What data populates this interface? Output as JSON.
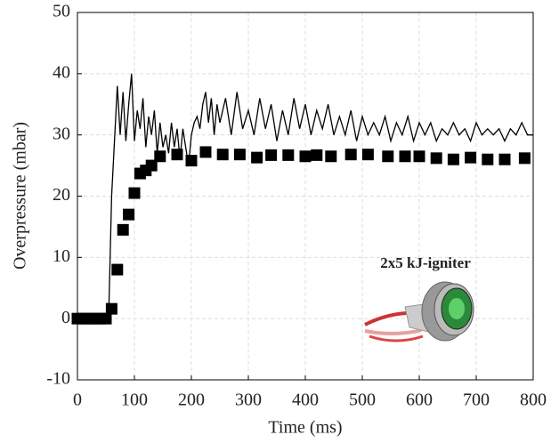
{
  "chart_data": {
    "type": "line",
    "xlabel": "Time (ms)",
    "ylabel": "Overpressure (mbar)",
    "annotation": "2x5 kJ-igniter",
    "xlim": [
      0,
      800
    ],
    "ylim": [
      -10,
      50
    ],
    "xticks": [
      0,
      100,
      200,
      300,
      400,
      500,
      600,
      700,
      800
    ],
    "yticks": [
      -10,
      0,
      10,
      20,
      30,
      40,
      50
    ],
    "grid": true,
    "series": [
      {
        "type": "line",
        "color": "#000000",
        "x": [
          0,
          10,
          20,
          30,
          40,
          50,
          55,
          60,
          65,
          70,
          75,
          80,
          85,
          90,
          95,
          100,
          105,
          110,
          115,
          120,
          125,
          130,
          135,
          140,
          145,
          150,
          155,
          160,
          165,
          170,
          175,
          180,
          185,
          190,
          195,
          200,
          205,
          210,
          215,
          220,
          225,
          230,
          235,
          240,
          245,
          250,
          260,
          270,
          280,
          290,
          300,
          310,
          320,
          330,
          340,
          350,
          360,
          370,
          380,
          390,
          400,
          410,
          420,
          430,
          440,
          450,
          460,
          470,
          480,
          490,
          500,
          510,
          520,
          530,
          540,
          550,
          560,
          570,
          580,
          590,
          600,
          610,
          620,
          630,
          640,
          650,
          660,
          670,
          680,
          690,
          700,
          710,
          720,
          730,
          740,
          750,
          760,
          770,
          780,
          790,
          800
        ],
        "values": [
          0,
          0,
          0,
          0,
          0,
          0,
          1,
          20,
          29,
          38,
          30,
          37,
          29,
          35,
          40,
          29,
          34,
          31,
          36,
          28,
          33,
          30,
          34,
          27,
          32,
          28,
          30,
          27,
          32,
          28,
          31,
          26,
          31,
          28,
          25,
          30,
          32,
          33,
          31,
          35,
          37,
          32,
          36,
          30,
          35,
          32,
          36,
          30,
          37,
          31,
          34,
          30,
          36,
          31,
          35,
          29,
          34,
          30,
          36,
          31,
          35,
          30,
          34,
          31,
          35,
          30,
          33,
          30,
          34,
          29,
          33,
          30,
          32,
          30,
          33,
          29,
          32,
          30,
          33,
          29,
          32,
          30,
          32,
          29,
          31,
          30,
          32,
          30,
          31,
          29,
          32,
          30,
          31,
          30,
          31,
          29,
          31,
          30,
          32,
          30,
          30
        ]
      },
      {
        "type": "scatter",
        "color": "#000000",
        "x": [
          0,
          10,
          20,
          30,
          40,
          50,
          60,
          70,
          80,
          90,
          100,
          110,
          120,
          130,
          145,
          175,
          200,
          225,
          255,
          285,
          315,
          340,
          370,
          400,
          420,
          445,
          480,
          510,
          545,
          575,
          600,
          630,
          660,
          690,
          720,
          750,
          785
        ],
        "values": [
          0,
          0,
          0,
          0,
          0,
          0,
          1.6,
          8,
          14.5,
          17,
          20.5,
          23.7,
          24.2,
          25,
          26.5,
          26.8,
          25.8,
          27.2,
          26.8,
          26.8,
          26.3,
          26.7,
          26.7,
          26.5,
          26.7,
          26.5,
          26.8,
          26.8,
          26.5,
          26.5,
          26.5,
          26.2,
          26,
          26.3,
          26,
          26,
          26.2
        ]
      }
    ]
  }
}
